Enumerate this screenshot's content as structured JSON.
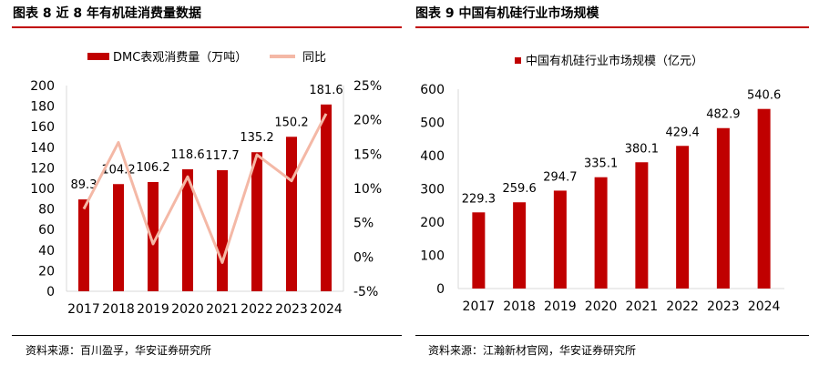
{
  "left_panel": {
    "header": "图表 8 近 8 年有机硅消费量数据",
    "source": "资料来源：百川盈孚，华安证券研究所"
  },
  "right_panel": {
    "header": "图表 9 中国有机硅行业市场规模",
    "source": "资料来源：江瀚新材官网，华安证券研究所"
  },
  "colors": {
    "bar": "#c00000",
    "line": "#f4b8a6",
    "rule": "#c00000"
  },
  "chart_data": [
    {
      "type": "bar",
      "title": "",
      "categories": [
        "2017",
        "2018",
        "2019",
        "2020",
        "2021",
        "2022",
        "2023",
        "2024"
      ],
      "series": [
        {
          "name": "DMC表观消费量（万吨）",
          "axis": "left",
          "values": [
            89.3,
            104.2,
            106.2,
            118.6,
            117.7,
            135.2,
            150.2,
            181.6
          ],
          "labels": [
            "89.3",
            "104.2",
            "106.2",
            "118.6",
            "117.7",
            "135.2",
            "150.2",
            "181.6"
          ]
        },
        {
          "name": "同比",
          "type": "line",
          "axis": "right",
          "values": [
            7.0,
            16.7,
            1.9,
            11.7,
            -0.8,
            14.9,
            11.1,
            20.9
          ]
        }
      ],
      "yticks": [
        "200",
        "180",
        "160",
        "140",
        "120",
        "100",
        "80",
        "60",
        "40",
        "20",
        "0"
      ],
      "y2ticks": [
        "25%",
        "20%",
        "15%",
        "10%",
        "5%",
        "0%",
        "-5%"
      ],
      "ylim": [
        0,
        200
      ],
      "y2lim": [
        -5,
        25
      ],
      "legend": "top"
    },
    {
      "type": "bar",
      "title": "",
      "categories": [
        "2017",
        "2018",
        "2019",
        "2020",
        "2021",
        "2022",
        "2023",
        "2024"
      ],
      "series": [
        {
          "name": "中国有机硅行业市场规模（亿元）",
          "values": [
            229.3,
            259.6,
            294.7,
            335.1,
            380.1,
            429.4,
            482.9,
            540.6
          ],
          "labels": [
            "229.3",
            "259.6",
            "294.7",
            "335.1",
            "380.1",
            "429.4",
            "482.9",
            "540.6"
          ]
        }
      ],
      "yticks": [
        "600",
        "500",
        "400",
        "300",
        "200",
        "100",
        "0"
      ],
      "ylim": [
        0,
        600
      ],
      "legend": "top"
    }
  ]
}
